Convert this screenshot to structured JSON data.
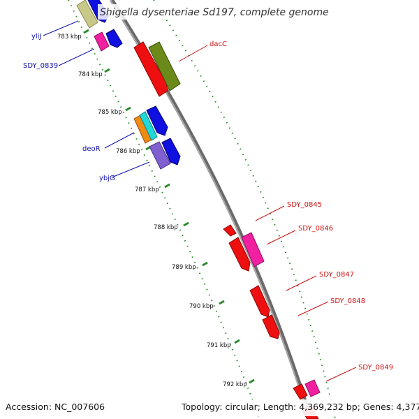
{
  "title": "Shigella dysenteriae Sd197, complete genome",
  "footer": {
    "accession": "Accession: NC_007606",
    "stats": "Topology: circular; Length: 4,369,232 bp; Genes: 4,377"
  },
  "kbp_labels": [
    "783 kbp",
    "784 kbp",
    "785 kbp",
    "786 kbp",
    "787 kbp",
    "788 kbp",
    "789 kbp",
    "790 kbp",
    "791 kbp",
    "792 kbp"
  ],
  "left_gene_labels": [
    "yliJ",
    "SDY_0839",
    "deoR",
    "ybjG"
  ],
  "right_gene_labels": [
    "dacC",
    "SDY_0845",
    "SDY_0846",
    "SDY_0847",
    "SDY_0848",
    "SDY_0849"
  ],
  "colors": {
    "backbone": "#8c8c8c",
    "tick": "#2a8a2a",
    "left_label": "#1010b0",
    "right_label": "#cc1010"
  }
}
